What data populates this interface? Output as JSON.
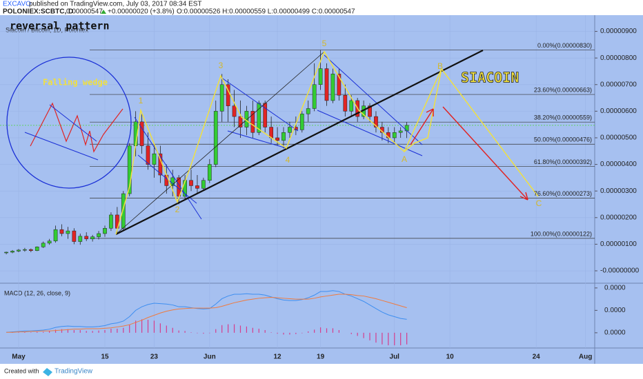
{
  "header": {
    "author": "EXCAVO",
    "published": "published on TradingView.com, July 03, 2017 08:34 EST",
    "symbol": "POLONIEX:SCBTC, D",
    "price": "0.00000547",
    "change": "+0.00000020 (+3.8%)",
    "ohlc": "O:0.00000526 H:0.00000559 L:0.00000499 C:0.00000547"
  },
  "chart_data": [
    {
      "type": "candlestick",
      "title": "Siacoin / Bitcoin, 1D, Poloniex",
      "annotations": [
        "reversal pattern",
        "Falling wedge",
        "SIACOIN"
      ],
      "wave_labels": [
        "1",
        "2",
        "3",
        "4",
        "5",
        "A",
        "B",
        "C"
      ],
      "up_color": "#33cc33",
      "down_color": "#e02424",
      "open": [
        6.8e-07,
        7e-07,
        7.4e-07,
        7.8e-07,
        8e-07,
        7.6e-07,
        9e-07,
        1.04e-06,
        1.12e-06,
        1.55e-06,
        1.4e-06,
        1.5e-06,
        1.1e-06,
        1.3e-06,
        1.2e-06,
        1.28e-06,
        1.4e-06,
        1.6e-06,
        2.1e-06,
        1.6e-06,
        2.9e-06,
        4.7e-06,
        5.6e-06,
        4.7e-06,
        4e-06,
        4.4e-06,
        3.6e-06,
        3.2e-06,
        3.5e-06,
        2.8e-06,
        3.4e-06,
        3.2e-06,
        3.1e-06,
        3.4e-06,
        4e-06,
        6e-06,
        7e-06,
        6.2e-06,
        5.8e-06,
        5.4e-06,
        6e-06,
        5.2e-06,
        6.3e-06,
        5.4e-06,
        5e-06,
        4.9e-06,
        5.2e-06,
        5.4e-06,
        5.3e-06,
        5.9e-06,
        6.1e-06,
        7e-06,
        7.6e-06,
        6.4e-06,
        7.4e-06,
        6.6e-06,
        6e-06,
        6.4e-06,
        5.8e-06,
        6.2e-06,
        5.8e-06,
        5.4e-06,
        5.2e-06,
        5e-06,
        5.2e-06,
        5.26e-06
      ],
      "high": [
        7.2e-07,
        7.8e-07,
        8.2e-07,
        8.6e-07,
        8.4e-07,
        9.2e-07,
        1.1e-06,
        1.2e-06,
        1.7e-06,
        1.75e-06,
        1.65e-06,
        1.6e-06,
        1.4e-06,
        1.45e-06,
        1.35e-06,
        1.5e-06,
        1.7e-06,
        2.2e-06,
        2.4e-06,
        3e-06,
        4.8e-06,
        6e-06,
        5.9e-06,
        5.2e-06,
        4.8e-06,
        4.7e-06,
        4e-06,
        3.8e-06,
        3.6e-06,
        3.6e-06,
        3.8e-06,
        3.6e-06,
        3.5e-06,
        4.2e-06,
        6.4e-06,
        7.4e-06,
        7.2e-06,
        6.8e-06,
        6.4e-06,
        6.2e-06,
        6.4e-06,
        6.4e-06,
        6.4e-06,
        5.8e-06,
        5.4e-06,
        5.4e-06,
        5.6e-06,
        5.8e-06,
        6e-06,
        6.4e-06,
        7.8e-06,
        8.3e-06,
        7.8e-06,
        7.6e-06,
        7.6e-06,
        7e-06,
        6.6e-06,
        6.5e-06,
        6.4e-06,
        6.3e-06,
        6e-06,
        5.6e-06,
        5.4e-06,
        5.4e-06,
        5.4e-06,
        5.59e-06
      ],
      "low": [
        6.2e-07,
        6.6e-07,
        7e-07,
        7.2e-07,
        7e-07,
        7.4e-07,
        8.6e-07,
        9.8e-07,
        1.06e-06,
        1.3e-06,
        1.2e-06,
        1e-06,
        9.8e-07,
        1.12e-06,
        1.1e-06,
        1.18e-06,
        1.28e-06,
        1.5e-06,
        1.4e-06,
        1.5e-06,
        2.8e-06,
        4.3e-06,
        4.4e-06,
        3.8e-06,
        3.5e-06,
        3.3e-06,
        2.9e-06,
        2.8e-06,
        2.5e-06,
        2.7e-06,
        3e-06,
        2.9e-06,
        3e-06,
        3.3e-06,
        3.9e-06,
        5.6e-06,
        5.6e-06,
        5.4e-06,
        5e-06,
        5.1e-06,
        5e-06,
        5.1e-06,
        5.2e-06,
        4.8e-06,
        4.7e-06,
        4.6e-06,
        5e-06,
        5.1e-06,
        5.2e-06,
        5.6e-06,
        6e-06,
        6.8e-06,
        6.2e-06,
        6.3e-06,
        6.4e-06,
        5.8e-06,
        5.8e-06,
        5.6e-06,
        5.7e-06,
        5.6e-06,
        5.2e-06,
        4.9e-06,
        4.8e-06,
        4.8e-06,
        5e-06,
        4.99e-06
      ],
      "close": [
        7e-07,
        7.4e-07,
        7.8e-07,
        8e-07,
        7.6e-07,
        9e-07,
        1.04e-06,
        1.12e-06,
        1.55e-06,
        1.4e-06,
        1.5e-06,
        1.1e-06,
        1.3e-06,
        1.2e-06,
        1.28e-06,
        1.4e-06,
        1.6e-06,
        2.1e-06,
        1.6e-06,
        2.9e-06,
        4.7e-06,
        5.6e-06,
        4.7e-06,
        4e-06,
        4.4e-06,
        3.6e-06,
        3.2e-06,
        3.5e-06,
        2.8e-06,
        3.4e-06,
        3.2e-06,
        3.1e-06,
        3.4e-06,
        4e-06,
        6e-06,
        7e-06,
        6.2e-06,
        5.8e-06,
        5.4e-06,
        6e-06,
        5.2e-06,
        6.3e-06,
        5.4e-06,
        5e-06,
        4.9e-06,
        5.2e-06,
        5.4e-06,
        5.3e-06,
        5.9e-06,
        6.1e-06,
        7e-06,
        7.6e-06,
        6.4e-06,
        7.4e-06,
        6.6e-06,
        6e-06,
        6.4e-06,
        5.8e-06,
        6.2e-06,
        5.8e-06,
        5.4e-06,
        5.2e-06,
        5e-06,
        5.2e-06,
        5.26e-06,
        5.47e-06
      ],
      "xlim": [
        -1.02,
        95.5
      ],
      "xticks": [
        {
          "value": 2,
          "label": "May"
        },
        {
          "value": 16,
          "label": "15"
        },
        {
          "value": 24,
          "label": "23"
        },
        {
          "value": 33,
          "label": "Jun"
        },
        {
          "value": 44,
          "label": "12"
        },
        {
          "value": 51,
          "label": "19"
        },
        {
          "value": 63,
          "label": "Jul"
        },
        {
          "value": 72,
          "label": "10"
        },
        {
          "value": 86,
          "label": "24"
        },
        {
          "value": 94,
          "label": "Aug"
        }
      ],
      "ylim": [
        -4.4e-07,
        9.61e-06
      ],
      "yticks": [
        {
          "value": 9e-06,
          "label": "0.00000900"
        },
        {
          "value": 8e-06,
          "label": "0.00000800"
        },
        {
          "value": 7e-06,
          "label": "0.00000700"
        },
        {
          "value": 6e-06,
          "label": "0.00000600"
        },
        {
          "value": 5e-06,
          "label": "0.00000500"
        },
        {
          "value": 4e-06,
          "label": "0.00000400"
        },
        {
          "value": 3e-06,
          "label": "0.00000300"
        },
        {
          "value": 2e-06,
          "label": "0.00000200"
        },
        {
          "value": 1e-06,
          "label": "0.00000100"
        },
        {
          "value": 0,
          "label": "-0.00000000"
        }
      ],
      "fib_levels": [
        {
          "value": 8.3e-06,
          "label": "0.00%(0.00000830)"
        },
        {
          "value": 6.63e-06,
          "label": "23.60%(0.00000663)"
        },
        {
          "value": 5.59e-06,
          "label": "38.20%(0.00000559)"
        },
        {
          "value": 4.76e-06,
          "label": "50.00%(0.00000476)"
        },
        {
          "value": 3.92e-06,
          "label": "61.80%(0.00000392)"
        },
        {
          "value": 2.73e-06,
          "label": "76.60%(0.00000273)"
        },
        {
          "value": 1.22e-06,
          "label": "100.00%(0.00000122)"
        }
      ]
    },
    {
      "type": "macd",
      "title": "MACD (12, 26, close, 9)",
      "macd_color": "#3d8ef0",
      "signal_color": "#f07a3d",
      "hist_color": "#d63c8c",
      "ylim": [
        -3.4e-07,
        1.09e-06
      ],
      "yticks": [
        {
          "value": 1e-06,
          "label": "0.0000"
        },
        {
          "value": 5e-07,
          "label": "0.0000"
        },
        {
          "value": 0,
          "label": "0.0000"
        }
      ],
      "macd": [
        1e-08,
        2e-08,
        3e-08,
        4e-08,
        4e-08,
        5e-08,
        6e-08,
        8e-08,
        1.2e-07,
        1.4e-07,
        1.5e-07,
        1.4e-07,
        1.4e-07,
        1.3e-07,
        1.3e-07,
        1.4e-07,
        1.6e-07,
        2e-07,
        2.2e-07,
        2.6e-07,
        3.6e-07,
        5e-07,
        5.8e-07,
        6.3e-07,
        6.6e-07,
        6.5e-07,
        6.4e-07,
        6.2e-07,
        5.8e-07,
        5.8e-07,
        5.6e-07,
        5.4e-07,
        5.3e-07,
        5.4e-07,
        6.4e-07,
        7.6e-07,
        8.2e-07,
        8.6e-07,
        8.6e-07,
        8.7e-07,
        8.6e-07,
        8.6e-07,
        8.4e-07,
        8e-07,
        7.6e-07,
        7.3e-07,
        7.2e-07,
        7.2e-07,
        7.4e-07,
        7.8e-07,
        8.4e-07,
        9.2e-07,
        9.2e-07,
        9.4e-07,
        9.2e-07,
        8.6e-07,
        8.2e-07,
        7.6e-07,
        7e-07,
        6.2e-07,
        5.4e-07,
        4.6e-07,
        4e-07,
        3.6e-07,
        3.2e-07,
        3e-07
      ],
      "signal": [
        1e-08,
        1e-08,
        2e-08,
        2e-08,
        3e-08,
        3e-08,
        4e-08,
        4e-08,
        5e-08,
        6e-08,
        7e-08,
        8e-08,
        8e-08,
        9e-08,
        9e-08,
        9e-08,
        1e-07,
        1.1e-07,
        1.3e-07,
        1.5e-07,
        1.8e-07,
        2.3e-07,
        2.8e-07,
        3.4e-07,
        3.9e-07,
        4.4e-07,
        4.8e-07,
        5.1e-07,
        5.3e-07,
        5.4e-07,
        5.5e-07,
        5.5e-07,
        5.5e-07,
        5.5e-07,
        5.6e-07,
        5.9e-07,
        6.3e-07,
        6.7e-07,
        7e-07,
        7.3e-07,
        7.5e-07,
        7.7e-07,
        7.8e-07,
        7.9e-07,
        7.8e-07,
        7.7e-07,
        7.6e-07,
        7.5e-07,
        7.5e-07,
        7.5e-07,
        7.7e-07,
        8e-07,
        8.2e-07,
        8.4e-07,
        8.6e-07,
        8.6e-07,
        8.5e-07,
        8.3e-07,
        8.2e-07,
        7.9e-07,
        7.6e-07,
        7.2e-07,
        6.8e-07,
        6.4e-07,
        6e-07,
        5.6e-07
      ],
      "histogram": [
        0,
        1e-08,
        1e-08,
        2e-08,
        1e-08,
        2e-08,
        2e-08,
        4e-08,
        7e-08,
        8e-08,
        8e-08,
        6e-08,
        6e-08,
        4e-08,
        4e-08,
        5e-08,
        6e-08,
        9e-08,
        9e-08,
        1.1e-07,
        1.8e-07,
        2.7e-07,
        3e-07,
        2.9e-07,
        2.7e-07,
        2.1e-07,
        1.6e-07,
        1.1e-07,
        5e-08,
        4e-08,
        1e-08,
        -1e-08,
        -2e-08,
        -1e-08,
        8e-08,
        1.7e-07,
        1.9e-07,
        1.9e-07,
        1.6e-07,
        1.4e-07,
        1.1e-07,
        9e-08,
        6e-08,
        1e-08,
        -2e-08,
        -4e-08,
        -4e-08,
        -3e-08,
        -1e-08,
        3e-08,
        7e-08,
        1.2e-07,
        1e-07,
        1e-07,
        6e-08,
        0,
        -3e-08,
        -7e-08,
        -1.2e-07,
        -1.7e-07,
        -2.2e-07,
        -2.6e-07,
        -2.8e-07,
        -2.8e-07,
        -2.8e-07,
        -2.6e-07
      ]
    }
  ],
  "footer": {
    "created": "Created with",
    "brand": "TradingView"
  }
}
